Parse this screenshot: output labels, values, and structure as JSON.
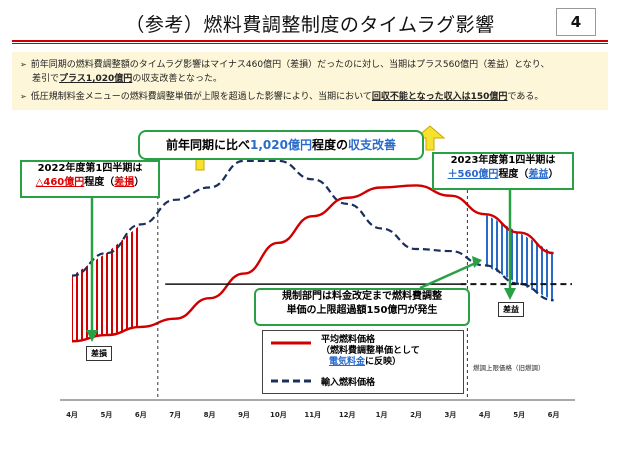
{
  "header": {
    "title": "（参考）燃料費調整制度のタイムラグ影響",
    "page_number": "4"
  },
  "summary": {
    "bullet1_a": "前年同期の燃料費調整額のタイムラグ影響はマイナス460億円（差損）だったのに対し、当期はプラス560億円（差益）となり、",
    "bullet1_b_pre": "差引で",
    "bullet1_b_em": "プラス1,020億円",
    "bullet1_b_post": "の収支改善となった。",
    "bullet2_pre": "低圧規制料金メニューの燃料費調整単価が上限を超過した影響により、当期において",
    "bullet2_em": "回収不能となった収入は150億円",
    "bullet2_post": "である。"
  },
  "headline": {
    "pre": "前年同期に比べ",
    "value": "1,020億円",
    "mid": "程度の",
    "post": "収支改善"
  },
  "left_callout": {
    "line1": "2022年度第1四半期は",
    "value": "△460億円",
    "mid": "程度（",
    "tag": "差損",
    "end": "）"
  },
  "right_callout": {
    "line1": "2023年度第1四半期は",
    "value": "＋560億円",
    "mid": "程度（",
    "tag": "差益",
    "end": "）"
  },
  "middle_callout": {
    "line1": "規制部門は料金改定まで燃料費調整",
    "line2": "単価の上限超過額150億円が発生"
  },
  "tags": {
    "loss": "差損",
    "gain": "差益"
  },
  "legend": {
    "avg_line1": "平均燃料価格",
    "avg_line2": "（燃料費調整単価として",
    "avg_line3_em": "電気料金",
    "avg_line3_post": "に反映）",
    "import": "輸入燃料価格"
  },
  "ceiling_label": "燃調上限価格（旧燃調）",
  "chart_data": {
    "type": "line",
    "categories": [
      "4月",
      "5月",
      "6月",
      "7月",
      "8月",
      "9月",
      "10月",
      "11月",
      "12月",
      "1月",
      "2月",
      "3月",
      "4月",
      "5月",
      "6月"
    ],
    "series": [
      {
        "name": "平均燃料価格",
        "values": [
          15,
          18,
          22,
          26,
          36,
          48,
          63,
          76,
          85,
          90,
          91,
          86,
          77,
          68,
          58
        ]
      },
      {
        "name": "輸入燃料価格",
        "values": [
          47,
          58,
          72,
          84,
          90,
          103,
          103,
          94,
          82,
          70,
          60,
          59,
          52,
          43,
          35
        ]
      }
    ],
    "ceiling_value": 37,
    "colors": {
      "average": "#d00000",
      "import": "#1a2f5c",
      "gain_hatch": "#2a6bc9",
      "loss_hatch": "#d00000",
      "callout_border": "#2aa046"
    }
  }
}
